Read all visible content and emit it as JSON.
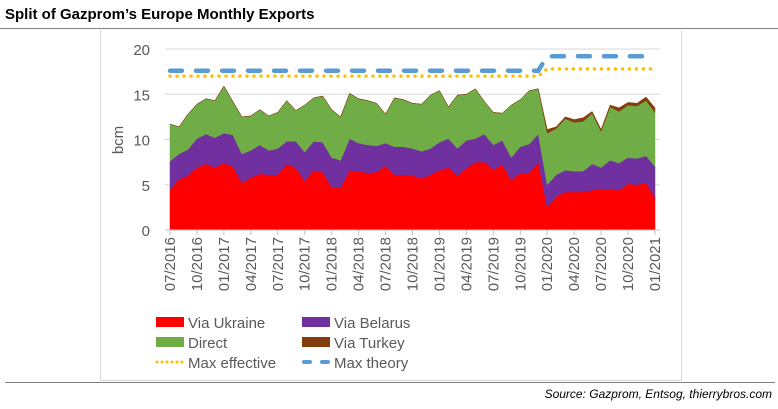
{
  "title": "Split of Gazprom’s Europe Monthly Exports",
  "source": "Source: Gazprom, Entsog, thierrybros.com",
  "chart_data": {
    "type": "area",
    "stacked": true,
    "title": "Split of Gazprom’s Europe Monthly Exports",
    "ylabel": "bcm",
    "xlabel": "",
    "ylim": [
      0,
      20
    ],
    "yticks": [
      0,
      5,
      10,
      15,
      20
    ],
    "grid": "horizontal",
    "legend_placement": "bottom",
    "x_start": "07/2016",
    "x_end": "01/2021",
    "x_frequency": "monthly",
    "xtick_labels": [
      "07/2016",
      "10/2016",
      "01/2017",
      "04/2017",
      "07/2017",
      "10/2017",
      "01/2018",
      "04/2018",
      "07/2018",
      "10/2018",
      "01/2019",
      "04/2019",
      "07/2019",
      "10/2019",
      "01/2020",
      "04/2020",
      "07/2020",
      "10/2020",
      "01/2021"
    ],
    "series": [
      {
        "name": "Via Ukraine",
        "color": "#FF0000",
        "kind": "area",
        "values": [
          4.5,
          5.6,
          6.0,
          6.9,
          7.3,
          6.9,
          7.4,
          7.0,
          5.2,
          5.8,
          6.2,
          6.1,
          6.1,
          7.3,
          6.9,
          5.4,
          6.6,
          6.4,
          4.7,
          4.7,
          6.6,
          6.5,
          6.3,
          6.4,
          7.1,
          6.1,
          6.1,
          6.0,
          5.7,
          6.1,
          6.6,
          6.9,
          6.0,
          6.8,
          7.5,
          7.5,
          6.7,
          7.2,
          5.5,
          6.3,
          6.3,
          7.5,
          2.5,
          3.7,
          4.2,
          4.2,
          4.2,
          4.4,
          4.5,
          4.5,
          4.4,
          5.1,
          5.0,
          5.2,
          3.6
        ]
      },
      {
        "name": "Via Belarus",
        "color": "#7030A0",
        "kind": "area",
        "values": [
          3.1,
          2.8,
          2.9,
          3.2,
          3.3,
          3.3,
          3.3,
          3.5,
          3.2,
          3.0,
          3.2,
          2.7,
          2.9,
          2.5,
          2.9,
          3.2,
          3.2,
          3.3,
          3.3,
          3.0,
          3.5,
          3.1,
          3.1,
          2.9,
          2.5,
          3.1,
          3.1,
          3.0,
          3.0,
          2.9,
          3.1,
          3.2,
          3.0,
          3.1,
          2.6,
          3.1,
          2.7,
          2.7,
          2.5,
          2.9,
          3.2,
          3.1,
          2.5,
          2.4,
          2.4,
          2.3,
          2.3,
          2.9,
          2.4,
          3.2,
          3.0,
          2.9,
          2.9,
          3.0,
          3.4
        ]
      },
      {
        "name": "Direct",
        "color": "#70AD47",
        "kind": "area",
        "values": [
          4.1,
          3.0,
          3.9,
          3.8,
          3.9,
          4.1,
          5.2,
          3.7,
          4.1,
          3.8,
          3.9,
          3.8,
          4.0,
          4.5,
          3.4,
          5.2,
          4.8,
          5.1,
          5.3,
          4.8,
          5.0,
          4.9,
          4.9,
          4.7,
          3.2,
          5.4,
          5.2,
          5.0,
          5.2,
          5.9,
          5.7,
          3.5,
          5.9,
          5.1,
          5.5,
          3.6,
          3.6,
          3.0,
          5.8,
          5.2,
          5.9,
          5.0,
          5.7,
          5.1,
          5.7,
          5.4,
          5.5,
          5.6,
          4.0,
          5.9,
          5.7,
          5.8,
          5.8,
          6.1,
          6.0
        ]
      },
      {
        "name": "Via Turkey",
        "color": "#843C0C",
        "kind": "area",
        "values": [
          0,
          0,
          0,
          0,
          0,
          0,
          0,
          0,
          0,
          0,
          0,
          0,
          0,
          0,
          0,
          0,
          0,
          0,
          0,
          0,
          0,
          0,
          0,
          0,
          0,
          0,
          0,
          0,
          0,
          0,
          0,
          0,
          0,
          0,
          0,
          0,
          0,
          0,
          0,
          0,
          0,
          0,
          0.4,
          0.2,
          0.2,
          0.3,
          0.4,
          0.2,
          0.2,
          0.2,
          0.4,
          0.3,
          0.3,
          0.4,
          0.5
        ]
      },
      {
        "name": "Max effective",
        "color": "#FFC000",
        "kind": "dotted-line",
        "values": [
          17,
          17,
          17,
          17,
          17,
          17,
          17,
          17,
          17,
          17,
          17,
          17,
          17,
          17,
          17,
          17,
          17,
          17,
          17,
          17,
          17,
          17,
          17,
          17,
          17,
          17,
          17,
          17,
          17,
          17,
          17,
          17,
          17,
          17,
          17,
          17,
          17,
          17,
          17,
          17,
          17,
          17,
          17.8,
          17.8,
          17.8,
          17.8,
          17.8,
          17.8,
          17.8,
          17.8,
          17.8,
          17.8,
          17.8,
          17.8,
          17.8
        ]
      },
      {
        "name": "Max theory",
        "color": "#5B9BD5",
        "kind": "dashed-line",
        "values": [
          17.6,
          17.6,
          17.6,
          17.6,
          17.6,
          17.6,
          17.6,
          17.6,
          17.6,
          17.6,
          17.6,
          17.6,
          17.6,
          17.6,
          17.6,
          17.6,
          17.6,
          17.6,
          17.6,
          17.6,
          17.6,
          17.6,
          17.6,
          17.6,
          17.6,
          17.6,
          17.6,
          17.6,
          17.6,
          17.6,
          17.6,
          17.6,
          17.6,
          17.6,
          17.6,
          17.6,
          17.6,
          17.6,
          17.6,
          17.6,
          17.6,
          17.6,
          19.2,
          19.2,
          19.2,
          19.2,
          19.2,
          19.2,
          19.2,
          19.2,
          19.2,
          19.2,
          19.2,
          19.2,
          19.2
        ]
      }
    ]
  }
}
